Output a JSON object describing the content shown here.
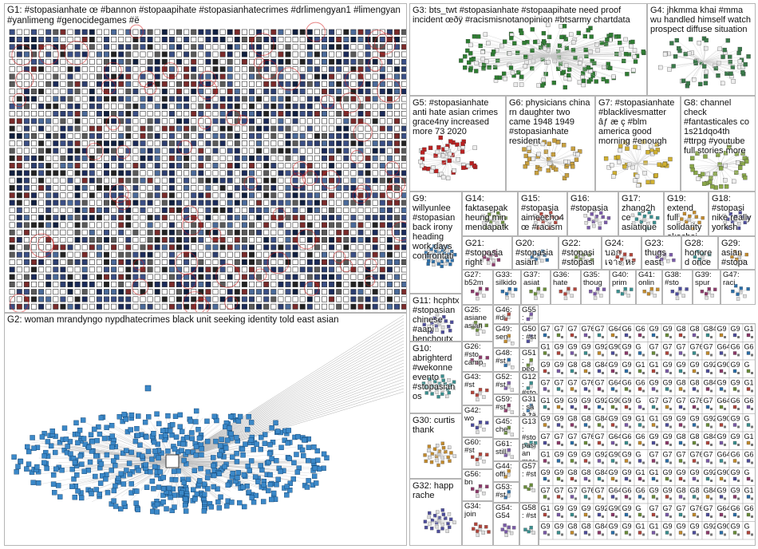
{
  "groups": [
    {
      "id": "g1",
      "text": "G1: #stopasianhate œ #bannon #stopaapihate #stopasianhatecrimes #drlimengyan1 #limengyan #yanlimeng #genocidegames #ë"
    },
    {
      "id": "g2",
      "text": "G2: woman mrandyngo nypdhatecrimes black unit seeking identity told east asian"
    },
    {
      "id": "g3",
      "text": "G3: bts_twt #stopasianhate #stopaapihate need proof incident œðÿ #racismisnotanopinion #btsarmy chartdata"
    },
    {
      "id": "g4",
      "text": "G4: jhkmma khai #mma wu handled himself watch prospect diffuse situation"
    },
    {
      "id": "g5",
      "text": "G5: #stopasianhate anti hate asian crimes grace4ny increased more 73 2020"
    },
    {
      "id": "g6",
      "text": "G6: physicians china rn daughter two came 1948 1949 #stopasianhate resident"
    },
    {
      "id": "g7",
      "text": "G7: #stopasianhate #blacklivesmatter âƒ æ ç #blm america good morning #enough"
    },
    {
      "id": "g8",
      "text": "G8: channel check #fantasticales co 1s21dqo4th #ttrpg #youtube full stories more"
    },
    {
      "id": "g9",
      "text": "G9: willyunlee #stopasian back irony heading work days confrontati"
    },
    {
      "id": "g14",
      "text": "G14: faktasepak heung min mendapatk"
    },
    {
      "id": "g15",
      "text": "G15: #stopasia aimeecho4 œ #racism"
    },
    {
      "id": "g16",
      "text": "G16: #stopasia"
    },
    {
      "id": "g17",
      "text": "G17: zhang2h ce asiatique"
    },
    {
      "id": "g19",
      "text": "G19: extend full solidarity akachai"
    },
    {
      "id": "g18",
      "text": "G18: #stopasi nike really yorksh"
    },
    {
      "id": "g21",
      "text": "G21: #stopasia right"
    },
    {
      "id": "g20",
      "text": "G20: #stopasia asian"
    },
    {
      "id": "g22",
      "text": "G22: #stopasi #stopasi"
    },
    {
      "id": "g24",
      "text": "G24: บอก เจาะ หะ หะ"
    },
    {
      "id": "g23",
      "text": "G23: thugs east"
    },
    {
      "id": "g28",
      "text": "G28: honored once"
    },
    {
      "id": "g29",
      "text": "G29: asian #stopa"
    },
    {
      "id": "g11",
      "text": "G11: hcphtx #stopasian chinese #aapi benchoutx vietnames"
    },
    {
      "id": "g27",
      "text": "G27: b52m"
    },
    {
      "id": "g33",
      "text": "G33: silkido"
    },
    {
      "id": "g37",
      "text": "G37: asiat"
    },
    {
      "id": "g36",
      "text": "G36: hate"
    },
    {
      "id": "g35",
      "text": "G35: thoug"
    },
    {
      "id": "g40",
      "text": "G40: prim"
    },
    {
      "id": "g41",
      "text": "G41: onlin"
    },
    {
      "id": "g38",
      "text": "G38: #sto"
    },
    {
      "id": "g39",
      "text": "G39: spur"
    },
    {
      "id": "g47",
      "text": "G47: raci"
    },
    {
      "id": "g25",
      "text": "G25: asiane asian"
    },
    {
      "id": "g46",
      "text": "G46: #di"
    },
    {
      "id": "g55",
      "text": "G55: tha"
    },
    {
      "id": "g10",
      "text": "G10: abrighterd #wekonne evento #stopasian os"
    },
    {
      "id": "g49",
      "text": "G49: sen"
    },
    {
      "id": "g50",
      "text": "G50: #st"
    },
    {
      "id": "g26",
      "text": "G26: #sto camp"
    },
    {
      "id": "g48",
      "text": "G48: #st"
    },
    {
      "id": "g51",
      "text": "G51: peo"
    },
    {
      "id": "g43",
      "text": "G43: #st"
    },
    {
      "id": "g52",
      "text": "G52: #st"
    },
    {
      "id": "g12",
      "text": "G12: #stopasian #stopasian #stopaapih firstthemne black"
    },
    {
      "id": "g30",
      "text": "G30: curtis thank"
    },
    {
      "id": "g42",
      "text": "G42: wo"
    },
    {
      "id": "g59",
      "text": "G59: #st"
    },
    {
      "id": "g31",
      "text": "G31: sâ à žä"
    },
    {
      "id": "g45",
      "text": "G45: che"
    },
    {
      "id": "g60",
      "text": "G60: #st"
    },
    {
      "id": "g61",
      "text": "G61: still"
    },
    {
      "id": "g13",
      "text": "G13: #stopasian marktuan hate needs stop kind"
    },
    {
      "id": "g44",
      "text": "G44: offi"
    },
    {
      "id": "g32",
      "text": "G32: happ rache"
    },
    {
      "id": "g56",
      "text": "G56: bn"
    },
    {
      "id": "g53",
      "text": "G53: #st"
    },
    {
      "id": "g57",
      "text": "G57: #st"
    },
    {
      "id": "g34",
      "text": "G34: join"
    },
    {
      "id": "g54",
      "text": "G54: G54"
    },
    {
      "id": "g58",
      "text": "G58: #st"
    }
  ],
  "smallLabels": [
    "G7",
    "G7",
    "G7",
    "G76",
    "G7",
    "G64",
    "G6",
    "G6",
    "G9",
    "G9",
    "G8",
    "G8",
    "G84",
    "G9",
    "G9",
    "G1",
    "G1",
    "G9",
    "G9",
    "G9",
    "G92",
    "G90",
    "G9",
    "G"
  ],
  "colors": {
    "border": "#b5b5b5",
    "g1node": "#1a2a5a",
    "g2node": "#3b88c8",
    "g3node": "#2e7d32",
    "red": "#d62020"
  }
}
